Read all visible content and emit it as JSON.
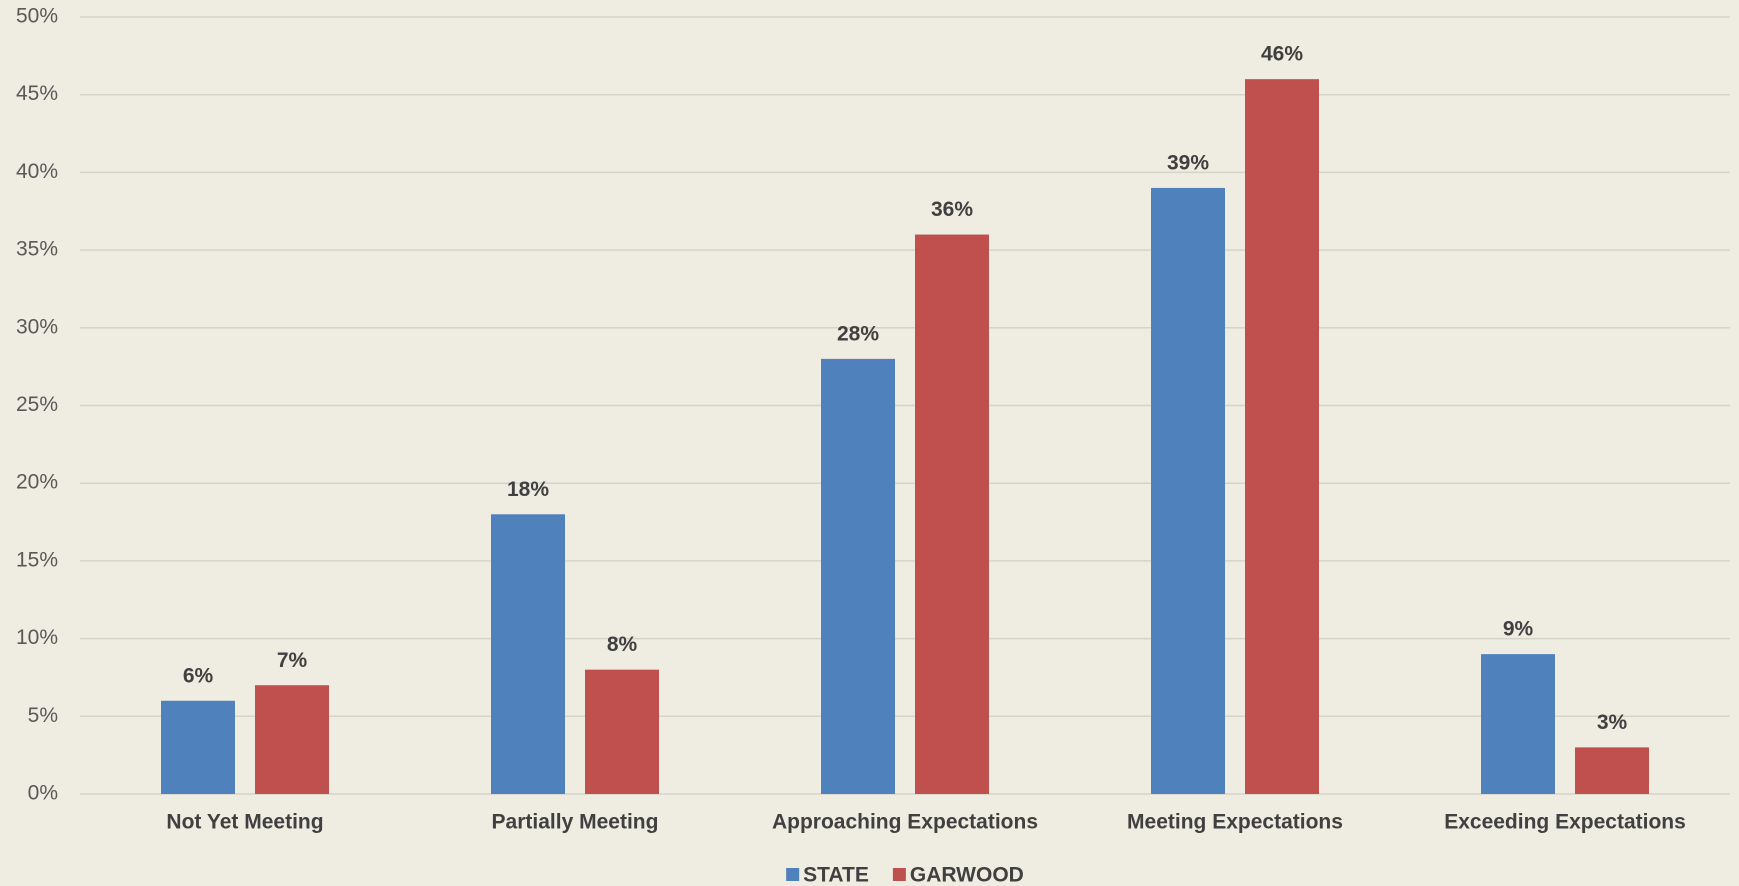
{
  "chart_data": {
    "type": "bar",
    "categories": [
      "Not Yet Meeting",
      "Partially Meeting",
      "Approaching Expectations",
      "Meeting Expectations",
      "Exceeding Expectations"
    ],
    "series": [
      {
        "name": "STATE",
        "color": "#4f81bd",
        "values": [
          6,
          18,
          28,
          39,
          9
        ],
        "value_labels": [
          "6%",
          "18%",
          "28%",
          "39%",
          "9%"
        ]
      },
      {
        "name": "GARWOOD",
        "color": "#c0504d",
        "values": [
          7,
          8,
          36,
          46,
          3
        ],
        "value_labels": [
          "7%",
          "8%",
          "36%",
          "46%",
          "3%"
        ]
      }
    ],
    "ylim": [
      0,
      50
    ],
    "yticks": [
      {
        "value": 0,
        "label": "0%"
      },
      {
        "value": 5,
        "label": "5%"
      },
      {
        "value": 10,
        "label": "10%"
      },
      {
        "value": 15,
        "label": "15%"
      },
      {
        "value": 20,
        "label": "20%"
      },
      {
        "value": 25,
        "label": "25%"
      },
      {
        "value": 30,
        "label": "30%"
      },
      {
        "value": 35,
        "label": "35%"
      },
      {
        "value": 40,
        "label": "40%"
      },
      {
        "value": 45,
        "label": "45%"
      },
      {
        "value": 50,
        "label": "50%"
      }
    ],
    "grid": true,
    "legend": "bottom"
  }
}
